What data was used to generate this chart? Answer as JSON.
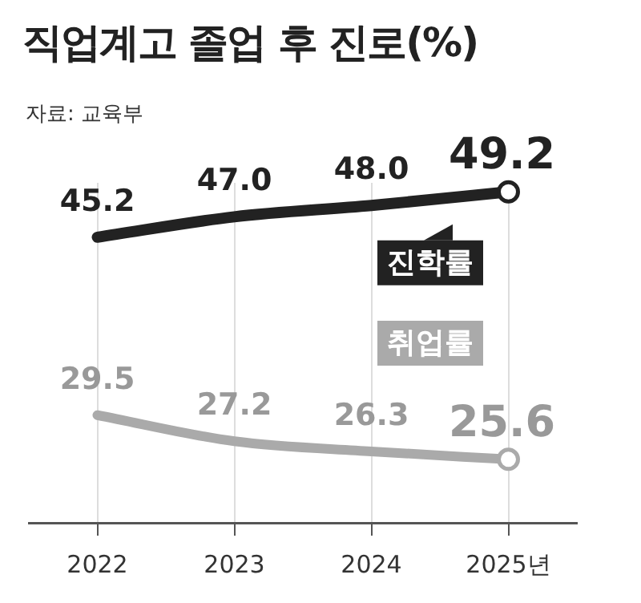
{
  "chart_data": {
    "type": "line",
    "title": "직업계고 졸업 후 진로(%)",
    "annotations": [
      "자료: 교육부"
    ],
    "categories": [
      "2022",
      "2023",
      "2024",
      "2025년"
    ],
    "series": [
      {
        "name": "진학률",
        "color": "#222222",
        "values": [
          45.2,
          47.0,
          48.0,
          49.2
        ],
        "value_labels": [
          "45.2",
          "47.0",
          "48.0",
          "49.2"
        ]
      },
      {
        "name": "취업률",
        "color": "#aaaaaa",
        "values": [
          29.5,
          27.2,
          26.3,
          25.6
        ],
        "value_labels": [
          "29.5",
          "27.2",
          "26.3",
          "25.6"
        ]
      }
    ],
    "grid": "x",
    "legend": "right"
  }
}
